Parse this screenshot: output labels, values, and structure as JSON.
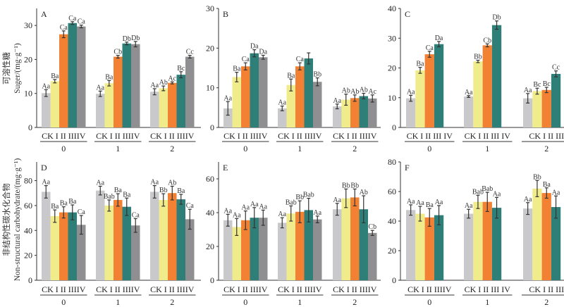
{
  "colors": {
    "CK": "#c9c9cb",
    "I": "#f1ec8b",
    "II": "#f28133",
    "III": "#2f7f79",
    "IV": "#8f8f91",
    "error_bar": "#333333"
  },
  "y_labels": {
    "top": {
      "cn": "可溶性糖",
      "en": "Suger/(mg·g⁻¹)"
    },
    "bottom": {
      "cn": "非结构性碳水化合物",
      "en": "Non-structural carbohydrate/(mg·g⁻¹)"
    }
  },
  "chart_data": [
    {
      "panel": "A",
      "type": "bar",
      "ylim": [
        0,
        35
      ],
      "yticks": [
        0,
        10,
        20,
        30
      ],
      "groups": [
        "0",
        "1",
        "2"
      ],
      "treatments": [
        "CK",
        "I",
        "II",
        "III",
        "IV"
      ],
      "tick_labels": [
        "CK I  II IIIIV",
        "CK I  II IIIIV",
        "CK I  II IIIIV"
      ],
      "values": [
        [
          10.1,
          13.6,
          27.4,
          30.7,
          29.7
        ],
        [
          9.9,
          13.0,
          20.8,
          24.7,
          24.5
        ],
        [
          10.5,
          11.5,
          13.1,
          15.5,
          20.8
        ]
      ],
      "errors": [
        [
          1.0,
          0.5,
          1.0,
          0.4,
          0.4
        ],
        [
          0.8,
          0.8,
          0.4,
          0.4,
          0.8
        ],
        [
          0.9,
          0.7,
          0.3,
          0.9,
          0.4
        ]
      ],
      "labels": [
        [
          "Aa",
          "Ba",
          "Ca",
          "Ca",
          "Ca"
        ],
        [
          "Aa",
          "Ba",
          "Cb",
          "Db",
          "Db"
        ],
        [
          "Aa",
          "Ab",
          "Ac",
          "Bc",
          "Cc"
        ]
      ]
    },
    {
      "panel": "B",
      "type": "bar",
      "ylim": [
        0,
        30
      ],
      "yticks": [
        0,
        10,
        20,
        30
      ],
      "groups": [
        "0",
        "1",
        "2"
      ],
      "treatments": [
        "CK",
        "I",
        "II",
        "III",
        "IV"
      ],
      "tick_labels": [
        "CK I  II IIIIV",
        "CK I  II IIIIV",
        "CK I  II IIIIV"
      ],
      "values": [
        [
          4.8,
          12.7,
          15.4,
          18.7,
          17.7
        ],
        [
          4.8,
          10.7,
          15.4,
          17.4,
          11.5
        ],
        [
          5.3,
          7.0,
          7.4,
          7.9,
          7.3
        ]
      ],
      "errors": [
        [
          1.7,
          1.2,
          0.9,
          0.9,
          0.5
        ],
        [
          0.6,
          1.5,
          0.9,
          1.4,
          1.0
        ],
        [
          0.6,
          1.4,
          0.8,
          0.7,
          0.9
        ]
      ],
      "labels": [
        [
          "Aa",
          "Ba",
          "Ca",
          "Da",
          "Da"
        ],
        [
          "Aa",
          "Ba",
          "Ca",
          "",
          "Bb"
        ],
        [
          "Aa",
          "Ab",
          "Ab",
          "Ab",
          "Ac"
        ]
      ]
    },
    {
      "panel": "C",
      "type": "bar",
      "ylim": [
        0,
        40
      ],
      "yticks": [
        0,
        10,
        20,
        30,
        40
      ],
      "groups": [
        "0",
        "1",
        "2"
      ],
      "treatments": [
        "CK",
        "I",
        "II",
        "III"
      ],
      "tick_labels": [
        "CK I  II III IV",
        "CK I  II III IV",
        "CK I  II III"
      ],
      "values": [
        [
          9.8,
          19.2,
          24.6,
          28.0
        ],
        [
          10.4,
          22.2,
          27.6,
          34.4
        ],
        [
          9.8,
          12.2,
          12.6,
          18.0
        ]
      ],
      "errors": [
        [
          1.0,
          1.0,
          1.0,
          0.9
        ],
        [
          0.3,
          0.4,
          0.5,
          1.4
        ],
        [
          1.6,
          1.0,
          0.9,
          1.0
        ]
      ],
      "labels": [
        [
          "Aa",
          "Ba",
          "Ca",
          "Da"
        ],
        [
          "Aa",
          "Bb",
          "Cb",
          "Db"
        ],
        [
          "Aa",
          "Bc",
          "Bc",
          "Cc"
        ]
      ]
    },
    {
      "panel": "D",
      "type": "bar",
      "ylim": [
        0,
        95
      ],
      "yticks": [
        0,
        20,
        40,
        60,
        80
      ],
      "groups": [
        "0",
        "1",
        "2"
      ],
      "treatments": [
        "CK",
        "I",
        "II",
        "III",
        "IV"
      ],
      "tick_labels": [
        "CK I  II IIIIV",
        "CK I  II IIIIV",
        "CK I  II IIIIV"
      ],
      "values": [
        [
          71,
          51.5,
          54.5,
          54.5,
          44.5
        ],
        [
          72,
          60,
          64.5,
          59,
          44
        ],
        [
          71,
          64.5,
          70,
          65,
          49
        ]
      ],
      "errors": [
        [
          5,
          5,
          4.5,
          6,
          7.5
        ],
        [
          3.5,
          4.5,
          5,
          7,
          5.5
        ],
        [
          5,
          5,
          5.5,
          4,
          8
        ]
      ],
      "labels": [
        [
          "Aa",
          "Ba",
          "Ba",
          "Ba",
          "Ca"
        ],
        [
          "Aa",
          "Bab",
          "Ba",
          "Ba",
          "Ca"
        ],
        [
          "Aa",
          "Bb",
          "Ab",
          "Ba",
          "Ca"
        ]
      ]
    },
    {
      "panel": "E",
      "type": "bar",
      "ylim": [
        0,
        70
      ],
      "yticks": [
        0,
        20,
        40,
        60
      ],
      "groups": [
        "0",
        "1",
        "2"
      ],
      "treatments": [
        "CK",
        "I",
        "II",
        "III",
        "IV"
      ],
      "tick_labels": [
        "CK I  II IIIIV",
        "CK I  II IIIIV",
        "CK I  II IIIIV"
      ],
      "values": [
        [
          35.5,
          31.5,
          35.5,
          37,
          37
        ],
        [
          34,
          39.5,
          40.5,
          41.5,
          36
        ],
        [
          42,
          48.5,
          49,
          42,
          28
        ]
      ],
      "errors": [
        [
          3.5,
          5,
          5.5,
          6,
          4.5
        ],
        [
          3,
          4.5,
          6.5,
          7,
          2
        ],
        [
          3.5,
          5.5,
          5,
          8,
          1.5
        ]
      ],
      "labels": [
        [
          "Aa",
          "Aa",
          "Aa",
          "Aa",
          "Aa"
        ],
        [
          "Aa",
          "Bab",
          "Bb",
          "Bab",
          "Aa"
        ],
        [
          "Aa",
          "Bb",
          "Bb",
          "Ab",
          "Cb"
        ]
      ]
    },
    {
      "panel": "F",
      "type": "bar",
      "ylim": [
        0,
        80
      ],
      "yticks": [
        0,
        20,
        40,
        60,
        80
      ],
      "groups": [
        "0",
        "1",
        "2"
      ],
      "treatments": [
        "CK",
        "I",
        "II",
        "III"
      ],
      "tick_labels": [
        "CK I  II IIIIV",
        "CK I  II III IV",
        "CK I  II III"
      ],
      "values": [
        [
          47.5,
          45,
          42.5,
          44
        ],
        [
          45,
          53,
          53,
          49
        ],
        [
          48.5,
          62,
          59,
          49.5
        ]
      ],
      "errors": [
        [
          3.5,
          5,
          6,
          6.5
        ],
        [
          3,
          4.5,
          6.5,
          7
        ],
        [
          4,
          5.5,
          3.5,
          7.5
        ]
      ],
      "labels": [
        [
          "Aa",
          "Aa",
          "Ba",
          "Aa"
        ],
        [
          "Aa",
          "Bab",
          "Bab",
          "Aa"
        ],
        [
          "Aa",
          "Bb",
          "Ba",
          "Aa"
        ]
      ]
    }
  ]
}
